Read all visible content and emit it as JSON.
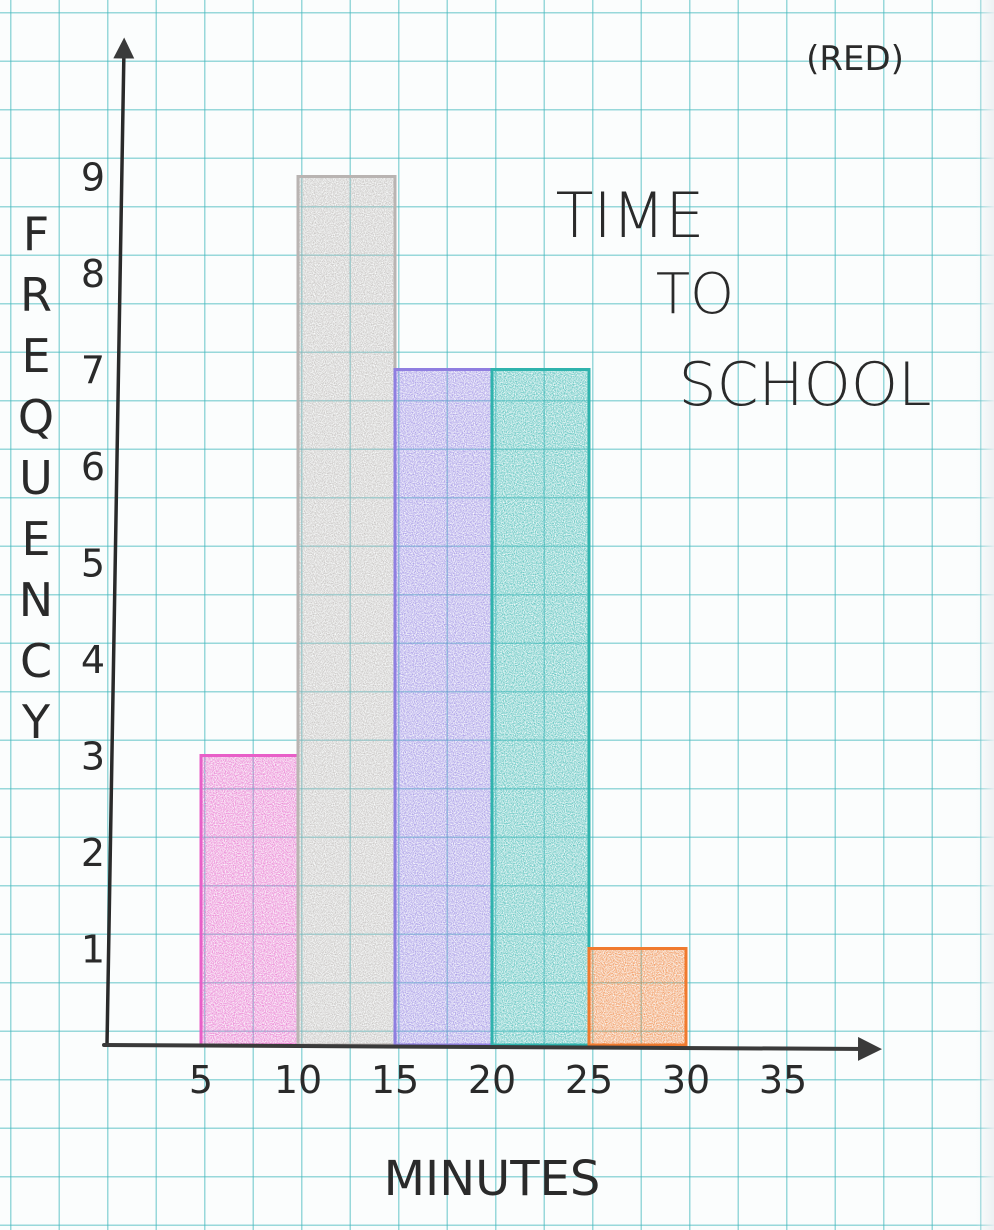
{
  "chart_data": {
    "type": "bar",
    "title": "TIME TO SCHOOL",
    "note": "(RED)",
    "xlabel": "MINUTES",
    "ylabel": "FREQUENCY",
    "x_ticks": [
      "5",
      "10",
      "15",
      "20",
      "25",
      "30",
      "35"
    ],
    "y_ticks": [
      "1",
      "2",
      "3",
      "4",
      "5",
      "6",
      "7",
      "8",
      "9"
    ],
    "xlim": [
      0,
      35
    ],
    "ylim": [
      0,
      9
    ],
    "bins": [
      {
        "start": 5,
        "end": 10,
        "value": 3,
        "color": "#e85fc8"
      },
      {
        "start": 10,
        "end": 15,
        "value": 9,
        "color": "#b9b4b2"
      },
      {
        "start": 15,
        "end": 20,
        "value": 7,
        "color": "#8f7ee0"
      },
      {
        "start": 20,
        "end": 25,
        "value": 7,
        "color": "#2fb3ad"
      },
      {
        "start": 25,
        "end": 30,
        "value": 1,
        "color": "#f07a2e"
      }
    ],
    "grid": true
  }
}
